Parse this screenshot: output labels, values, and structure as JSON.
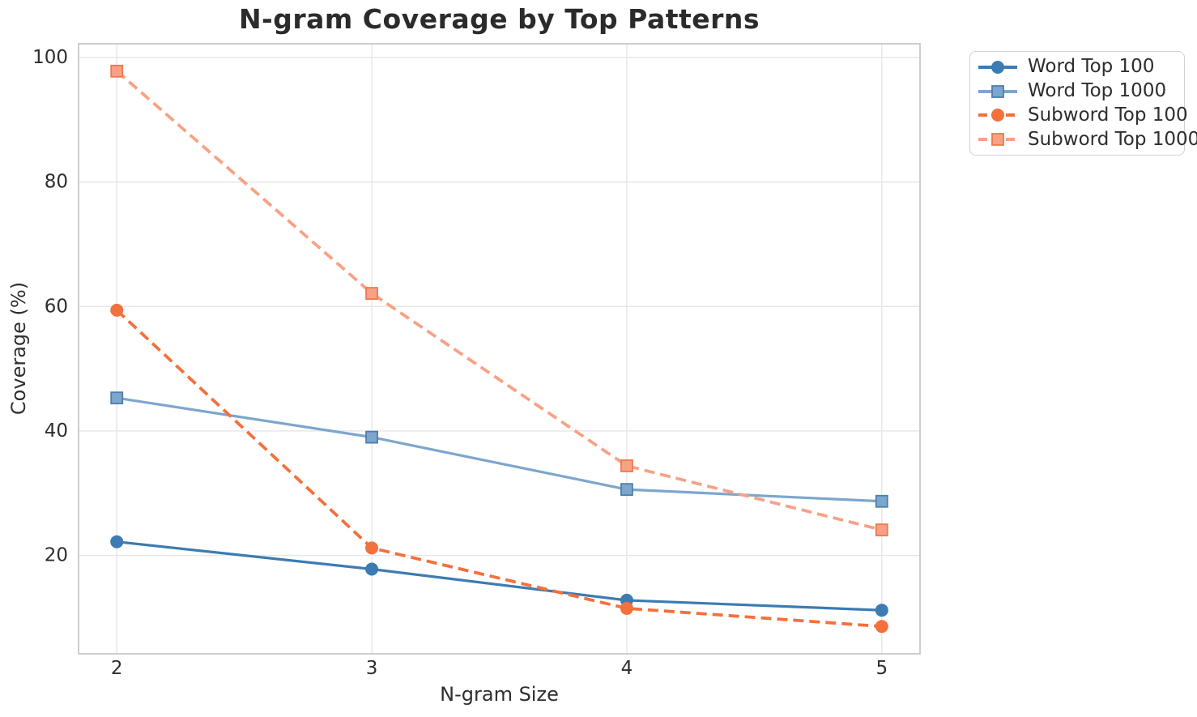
{
  "chart_data": {
    "type": "line",
    "title": "N-gram Coverage by Top Patterns",
    "xlabel": "N-gram Size",
    "ylabel": "Coverage (%)",
    "x": [
      2,
      3,
      4,
      5
    ],
    "xticks": [
      "2",
      "3",
      "4",
      "5"
    ],
    "yticks": [
      20,
      40,
      60,
      80,
      100
    ],
    "xlim": [
      1.85,
      5.15
    ],
    "ylim": [
      4.2,
      102.2
    ],
    "grid": true,
    "legend_position": "outside-upper-right",
    "series": [
      {
        "name": "Word Top 100",
        "values": [
          22.2,
          17.8,
          12.8,
          11.2
        ],
        "color": "#3c7bb3",
        "marker_edge": "#3c7bb3",
        "marker": "circle",
        "line_style": "solid"
      },
      {
        "name": "Word Top 1000",
        "values": [
          45.3,
          39.0,
          30.6,
          28.7
        ],
        "color": "#7da6cd",
        "marker_edge": "#4d7fae",
        "marker": "square",
        "line_style": "solid"
      },
      {
        "name": "Subword Top 100",
        "values": [
          59.4,
          21.2,
          11.5,
          8.6
        ],
        "color": "#f4703c",
        "marker_edge": "#f4703c",
        "marker": "circle",
        "line_style": "dashed"
      },
      {
        "name": "Subword Top 1000",
        "values": [
          97.8,
          62.1,
          34.4,
          24.1
        ],
        "color": "#f9a184",
        "marker_edge": "#f0774d",
        "marker": "square",
        "line_style": "dashed"
      }
    ]
  },
  "colors": {
    "background": "#ffffff",
    "grid": "#e8e8ea",
    "spine": "#c8c8cc",
    "tick_text": "#2e2e2e",
    "title_text": "#2b2b2b"
  }
}
